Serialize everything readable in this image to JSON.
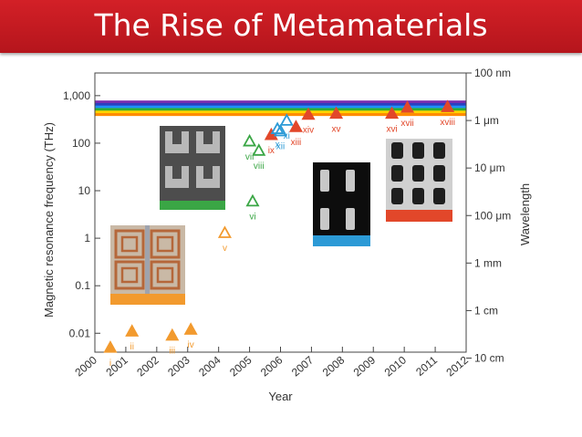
{
  "slide": {
    "title": "The Rise of Metamaterials"
  },
  "chart_data": {
    "type": "scatter",
    "title": "",
    "xlabel": "Year",
    "ylabel": "Magnetic resonance frequency (THz)",
    "y2label": "Wavelength",
    "xlim": [
      2000,
      2012
    ],
    "ylog": true,
    "ylim": [
      0.004,
      3000
    ],
    "x_ticks": [
      "2000",
      "2001",
      "2002",
      "2003",
      "2004",
      "2005",
      "2006",
      "2007",
      "2008",
      "2009",
      "2010",
      "2011",
      "2012"
    ],
    "y_ticks": [
      {
        "value": 0.01,
        "label": "0.01"
      },
      {
        "value": 0.1,
        "label": "0.1"
      },
      {
        "value": 1,
        "label": "1"
      },
      {
        "value": 10,
        "label": "10"
      },
      {
        "value": 100,
        "label": "100"
      },
      {
        "value": 1000,
        "label": "1,000"
      }
    ],
    "y2_ticks": [
      {
        "value": 3000,
        "label": "100 nm"
      },
      {
        "value": 300,
        "label": "1 μm"
      },
      {
        "value": 30,
        "label": "10 μm"
      },
      {
        "value": 3,
        "label": "100 μm"
      },
      {
        "value": 0.3,
        "label": "1 mm"
      },
      {
        "value": 0.03,
        "label": "1 cm"
      },
      {
        "value": 0.003,
        "label": "10 cm"
      }
    ],
    "visible_band": {
      "low": 380,
      "high": 790,
      "colors": [
        "#ff8c00",
        "#ffd400",
        "#30b030",
        "#1e90ff",
        "#2a3fbf",
        "#7a2db0"
      ]
    },
    "marker_colors": {
      "orange": "#f29a2e",
      "green": "#3aa645",
      "blue": "#2c9ad6",
      "red": "#e2472a"
    },
    "points": [
      {
        "label": "i",
        "x": 2000.5,
        "y": 0.005,
        "color": "orange",
        "filled": true
      },
      {
        "label": "ii",
        "x": 2001.2,
        "y": 0.011,
        "color": "orange",
        "filled": true
      },
      {
        "label": "iii",
        "x": 2002.5,
        "y": 0.009,
        "color": "orange",
        "filled": true
      },
      {
        "label": "iv",
        "x": 2003.1,
        "y": 0.012,
        "color": "orange",
        "filled": true
      },
      {
        "label": "v",
        "x": 2004.2,
        "y": 1.3,
        "color": "orange",
        "filled": false
      },
      {
        "label": "vi",
        "x": 2005.1,
        "y": 6,
        "color": "green",
        "filled": false
      },
      {
        "label": "vii",
        "x": 2005.0,
        "y": 110,
        "color": "green",
        "filled": false
      },
      {
        "label": "viii",
        "x": 2005.3,
        "y": 70,
        "color": "green",
        "filled": false
      },
      {
        "label": "ix",
        "x": 2005.7,
        "y": 150,
        "color": "red",
        "filled": true
      },
      {
        "label": "x",
        "x": 2005.9,
        "y": 200,
        "color": "blue",
        "filled": false
      },
      {
        "label": "xi",
        "x": 2006.2,
        "y": 300,
        "color": "blue",
        "filled": false
      },
      {
        "label": "xii",
        "x": 2006.0,
        "y": 180,
        "color": "blue",
        "filled": false
      },
      {
        "label": "xiii",
        "x": 2006.5,
        "y": 220,
        "color": "red",
        "filled": true
      },
      {
        "label": "xiv",
        "x": 2006.9,
        "y": 400,
        "color": "red",
        "filled": true
      },
      {
        "label": "xv",
        "x": 2007.8,
        "y": 420,
        "color": "red",
        "filled": true
      },
      {
        "label": "xvi",
        "x": 2009.6,
        "y": 420,
        "color": "red",
        "filled": true
      },
      {
        "label": "xvii",
        "x": 2010.1,
        "y": 560,
        "color": "red",
        "filled": true
      },
      {
        "label": "xviii",
        "x": 2011.4,
        "y": 580,
        "color": "red",
        "filled": true
      }
    ],
    "insets": [
      {
        "name": "orange-inset",
        "bar_color": "#f29a2e",
        "photo": "copper split-ring resonators"
      },
      {
        "name": "green-inset",
        "bar_color": "#3aa645",
        "photo": "U-shaped nanostructures"
      },
      {
        "name": "blue-inset",
        "bar_color": "#2c9ad6",
        "photo": "paired nanorods"
      },
      {
        "name": "red-inset",
        "bar_color": "#e2472a",
        "photo": "fishnet structure"
      }
    ]
  }
}
